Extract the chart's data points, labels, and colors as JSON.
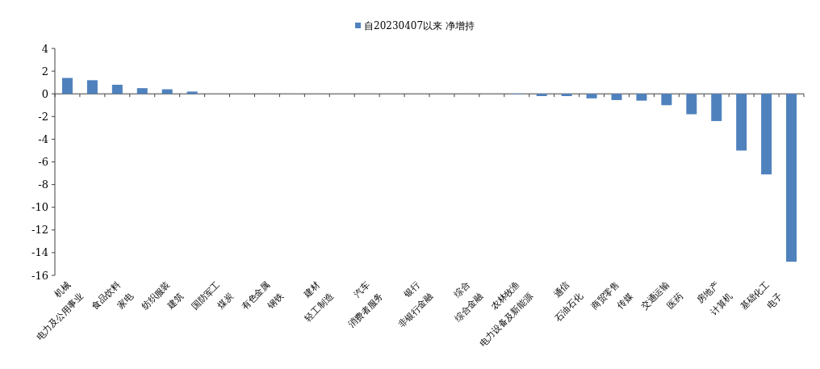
{
  "chart_data": {
    "type": "bar",
    "categories": [
      "机械",
      "电力及公用事业",
      "食品饮料",
      "家电",
      "纺织服装",
      "建筑",
      "国防军工",
      "煤炭",
      "有色金属",
      "钢铁",
      "建材",
      "轻工制造",
      "汽车",
      "消费者服务",
      "银行",
      "非银行金融",
      "综合",
      "综合金融",
      "农林牧渔",
      "电力设备及新能源",
      "通信",
      "石油石化",
      "商贸零售",
      "传媒",
      "交通运输",
      "医药",
      "房地产",
      "计算机",
      "基础化工",
      "电子"
    ],
    "series": [
      {
        "name": "自20230407以来 净增持",
        "color": "#4f81bd",
        "values": [
          1.4,
          1.2,
          0.8,
          0.5,
          0.4,
          0.2,
          0,
          0,
          0,
          0,
          0,
          0,
          0,
          0,
          0,
          0,
          0,
          0,
          -0.05,
          -0.2,
          -0.2,
          -0.4,
          -0.55,
          -0.6,
          -1.0,
          -1.8,
          -2.4,
          -5.0,
          -7.1,
          -14.8
        ]
      }
    ],
    "ylim": [
      -16,
      4
    ],
    "yticks": [
      -16,
      -14,
      -12,
      -10,
      -8,
      -6,
      -4,
      -2,
      0,
      2,
      4
    ],
    "legend": "top"
  }
}
